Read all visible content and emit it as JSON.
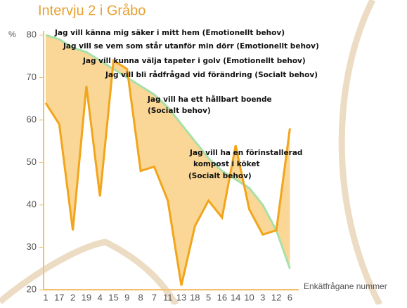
{
  "chart_data": {
    "type": "line",
    "title": "Intervju 2 i Gråbo",
    "y_label": "%",
    "x_label": "Enkätfrågane nummer",
    "categories": [
      "1",
      "17",
      "2",
      "19",
      "4",
      "15",
      "9",
      "8",
      "7",
      "11",
      "13",
      "18",
      "5",
      "16",
      "14",
      "10",
      "3",
      "12",
      "6"
    ],
    "series": [
      {
        "color": "#f2a51a",
        "values": [
          64,
          59,
          34,
          68,
          42,
          74,
          72,
          48,
          49,
          41,
          21,
          35,
          41,
          37,
          54,
          39,
          33,
          34,
          58
        ]
      },
      {
        "color": "#a8e0a8",
        "values": [
          80,
          79,
          77,
          76,
          74,
          72,
          70,
          68,
          66,
          63,
          59,
          55,
          51,
          48,
          46,
          44,
          40,
          34,
          25
        ]
      }
    ],
    "area_color": "#f9cf85",
    "ylim": [
      20,
      80
    ],
    "yticks": [
      20,
      30,
      40,
      50,
      60,
      70,
      80
    ],
    "annotations": [
      "Jag vill känna mig säker i mitt hem (Emotionellt behov)",
      "Jag vill se vem som står utanför min dörr (Emotionellt behov)",
      "Jag vill kunna välja tapeter i golv (Emotionellt behov)",
      "Jag vill bli rådfrågad vid förändring (Socialt behov)",
      "Jag vill ha ett hållbart boende",
      "(Socialt behov)",
      "Jag vill ha en förinstallerad",
      "kompost i köket",
      "(Socialt behov)"
    ]
  }
}
